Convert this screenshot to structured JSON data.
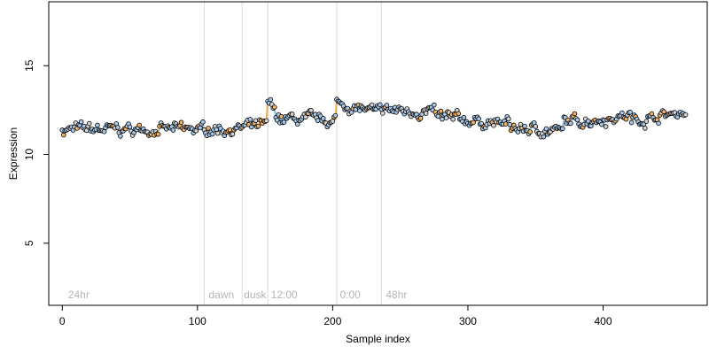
{
  "chart_data": {
    "type": "scatter",
    "title": "",
    "xlabel": "Sample index",
    "ylabel": "Expression",
    "xlim": [
      -10,
      477
    ],
    "ylim": [
      1.5,
      18.6
    ],
    "xticks": [
      0,
      100,
      200,
      300,
      400
    ],
    "yticks": [
      5,
      10,
      15
    ],
    "xtick_labels": [
      "0",
      "100",
      "200",
      "300",
      "400"
    ],
    "ytick_labels": [
      "5",
      "10",
      "15"
    ],
    "grid": false,
    "legend": "none",
    "vlines": [
      105,
      133,
      152,
      203,
      236
    ],
    "annotations": [
      {
        "text": "24hr",
        "x": 3,
        "y": 1.9
      },
      {
        "text": "dawn",
        "x": 107,
        "y": 1.9
      },
      {
        "text": "dusk",
        "x": 133,
        "y": 1.9
      },
      {
        "text": "12:00",
        "x": 153,
        "y": 1.9
      },
      {
        "text": "0:00",
        "x": 204,
        "y": 1.9
      },
      {
        "text": "48hr",
        "x": 238,
        "y": 1.9
      }
    ],
    "n_points": 462,
    "segments": [
      {
        "x_start": 0,
        "x_end": 104,
        "y_start": 11.4,
        "y_end": 11.4
      },
      {
        "x_start": 105,
        "x_end": 132,
        "y_start": 11.45,
        "y_end": 11.45
      },
      {
        "x_start": 133,
        "x_end": 151,
        "y_start": 11.5,
        "y_end": 11.6
      },
      {
        "x_start": 152,
        "x_end": 160,
        "y_start": 12.9,
        "y_end": 12.1
      },
      {
        "x_start": 161,
        "x_end": 202,
        "y_start": 12.0,
        "y_end": 11.9
      },
      {
        "x_start": 203,
        "x_end": 235,
        "y_start": 12.9,
        "y_end": 12.3
      },
      {
        "x_start": 236,
        "x_end": 275,
        "y_start": 12.5,
        "y_end": 12.4
      },
      {
        "x_start": 276,
        "x_end": 330,
        "y_start": 12.1,
        "y_end": 11.7
      },
      {
        "x_start": 331,
        "x_end": 370,
        "y_start": 11.5,
        "y_end": 11.3
      },
      {
        "x_start": 371,
        "x_end": 420,
        "y_start": 11.8,
        "y_end": 12.2
      },
      {
        "x_start": 421,
        "x_end": 461,
        "y_start": 11.9,
        "y_end": 12.4
      }
    ],
    "colors": {
      "point_stroke": "#000000",
      "point_fill_blue": "#a6c8ea",
      "point_fill_orange": "#f5b062",
      "point_fill_gray": "#d3d3d3",
      "line_blue": "#7fa9d6",
      "line_orange": "#f0a040",
      "vline": "#dddddd",
      "annotation": "#b5b5b5"
    }
  }
}
